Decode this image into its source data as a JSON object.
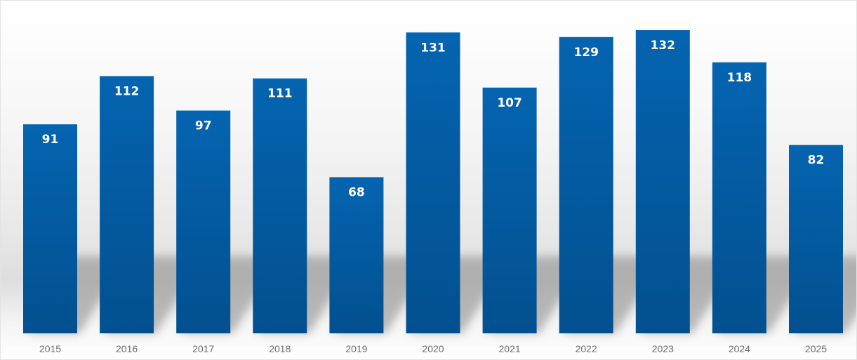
{
  "chart_data": {
    "type": "bar",
    "categories": [
      "2015",
      "2016",
      "2017",
      "2018",
      "2019",
      "2020",
      "2021",
      "2022",
      "2023",
      "2024",
      "2025"
    ],
    "values": [
      91,
      112,
      97,
      111,
      68,
      131,
      107,
      129,
      132,
      118,
      82
    ],
    "title": "",
    "xlabel": "",
    "ylabel": "",
    "ylim": [
      0,
      140
    ],
    "grid": false,
    "legend": "none",
    "data_labels": true,
    "colors": {
      "bar_top": "#0564b0",
      "bar_bottom": "#02508f",
      "label": "#ffffff",
      "tick": "#6e6e6e"
    }
  }
}
